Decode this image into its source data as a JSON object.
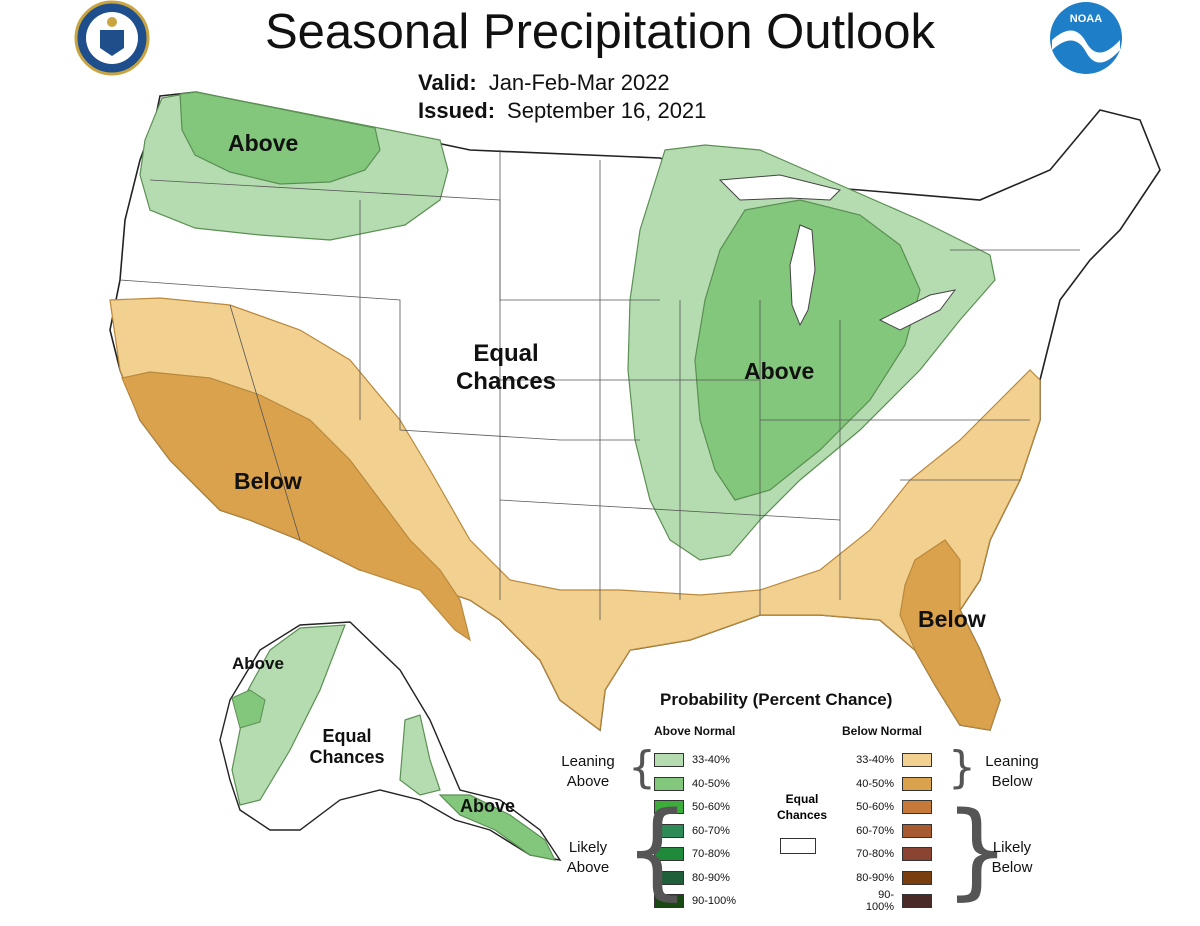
{
  "title": "Seasonal Precipitation Outlook",
  "valid_label": "Valid:",
  "valid_value": "Jan-Feb-Mar 2022",
  "issued_label": "Issued:",
  "issued_value": "September 16, 2021",
  "logos": {
    "left": "department-of-commerce-seal",
    "right": "noaa-logo",
    "noaa_text": "NOAA"
  },
  "map_labels": {
    "northwest": "Above",
    "midwest": "Above",
    "center_line1": "Equal",
    "center_line2": "Chances",
    "southwest": "Below",
    "southeast": "Below",
    "alaska_west": "Above",
    "alaska_center_line1": "Equal",
    "alaska_center_line2": "Chances",
    "alaska_southeast": "Above"
  },
  "legend": {
    "title": "Probability (Percent Chance)",
    "above_header": "Above Normal",
    "below_header": "Below Normal",
    "equal_line1": "Equal",
    "equal_line2": "Chances",
    "leaning_above_1": "Leaning",
    "leaning_above_2": "Above",
    "likely_above_1": "Likely",
    "likely_above_2": "Above",
    "leaning_below_1": "Leaning",
    "leaning_below_2": "Below",
    "likely_below_1": "Likely",
    "likely_below_2": "Below",
    "above": [
      {
        "label": "33-40%",
        "color": "#b5dcb0"
      },
      {
        "label": "40-50%",
        "color": "#82c77c"
      },
      {
        "label": "50-60%",
        "color": "#3aad3a"
      },
      {
        "label": "60-70%",
        "color": "#2e8b57"
      },
      {
        "label": "70-80%",
        "color": "#1f8a3a"
      },
      {
        "label": "80-90%",
        "color": "#1f5f3a"
      },
      {
        "label": "90-100%",
        "color": "#1a4a14"
      }
    ],
    "below": [
      {
        "label": "33-40%",
        "color": "#f2d08f"
      },
      {
        "label": "40-50%",
        "color": "#dba24e"
      },
      {
        "label": "50-60%",
        "color": "#c7793a"
      },
      {
        "label": "60-70%",
        "color": "#a75a30"
      },
      {
        "label": "70-80%",
        "color": "#8b4432"
      },
      {
        "label": "80-90%",
        "color": "#7a3e0e"
      },
      {
        "label": "90-100%",
        "color": "#4a2a26"
      }
    ]
  }
}
